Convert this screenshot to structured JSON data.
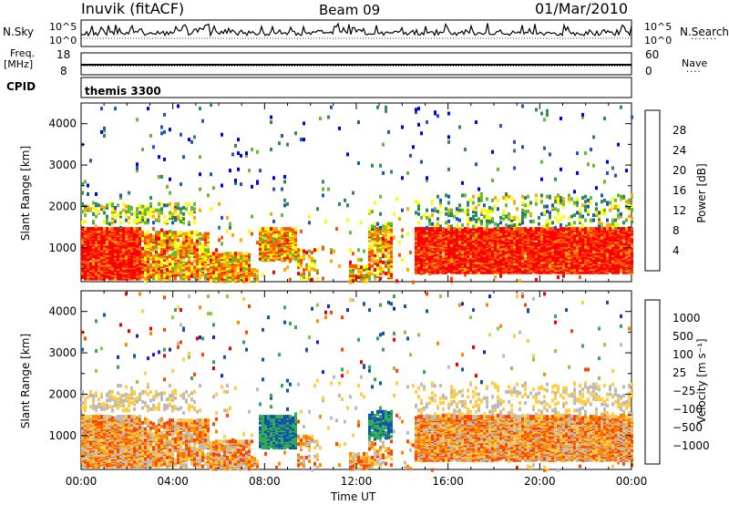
{
  "header": {
    "station": "Inuvik (fitACF)",
    "beam": "Beam 09",
    "date": "01/Mar/2010"
  },
  "noise_panel": {
    "left_label": "N.Sky",
    "right_label": "N.Search",
    "left_ticks": [
      "10^5",
      "10^0"
    ],
    "right_ticks": [
      "10^5",
      "10^0"
    ]
  },
  "freq_panel": {
    "left_label": "Freq.",
    "left_unit": "[MHz]",
    "left_ticks": [
      "18",
      "8"
    ],
    "right_label": "Nave",
    "right_ticks": [
      "60",
      "0"
    ]
  },
  "cpid_panel": {
    "label": "CPID",
    "value": "themis 3300"
  },
  "colors": {
    "power_scale": [
      "#0000ee",
      "#2255bb",
      "#2e8b57",
      "#66bb33",
      "#ffff00",
      "#ffaa00",
      "#ff5500",
      "#ff0000"
    ],
    "velocity_scale": [
      "#ee0000",
      "#ff4400",
      "#ff8800",
      "#ffcc44",
      "#bbbbbb",
      "#88cc44",
      "#33aa55",
      "#1155aa",
      "#2222cc"
    ]
  },
  "chart_data": [
    {
      "type": "heatmap",
      "panel": "power",
      "ylabel": "Slant Range [km]",
      "ylim": [
        180,
        4500
      ],
      "y_ticks": [
        "1000",
        "2000",
        "3000",
        "4000"
      ],
      "xlim_hours": [
        0,
        24
      ],
      "colorbar_label": "Power [dB]",
      "colorbar_ticks": [
        "4",
        "8",
        "12",
        "16",
        "20",
        "24",
        "28"
      ],
      "description_bands": [
        {
          "t_start": 0.0,
          "t_end": 2.5,
          "range_min": 300,
          "range_max": 1600,
          "value": "high"
        },
        {
          "t_start": 7.7,
          "t_end": 9.5,
          "range_min": 700,
          "range_max": 1500,
          "value": "medium"
        },
        {
          "t_start": 14.5,
          "t_end": 24.0,
          "range_min": 400,
          "range_max": 1500,
          "value": "high"
        }
      ]
    },
    {
      "type": "heatmap",
      "panel": "velocity",
      "ylabel": "Slant Range [km]",
      "ylim": [
        180,
        4500
      ],
      "y_ticks": [
        "1000",
        "2000",
        "3000",
        "4000"
      ],
      "xlim_hours": [
        0,
        24
      ],
      "colorbar_label": "Velocity [m s⁻¹]",
      "colorbar_ticks": [
        "1000",
        "500",
        "100",
        "25",
        "−25",
        "−100",
        "−500",
        "−1000"
      ]
    }
  ],
  "x_axis": {
    "label": "Time UT",
    "ticks": [
      "00:00",
      "04:00",
      "08:00",
      "12:00",
      "16:00",
      "20:00",
      "00:00"
    ]
  }
}
